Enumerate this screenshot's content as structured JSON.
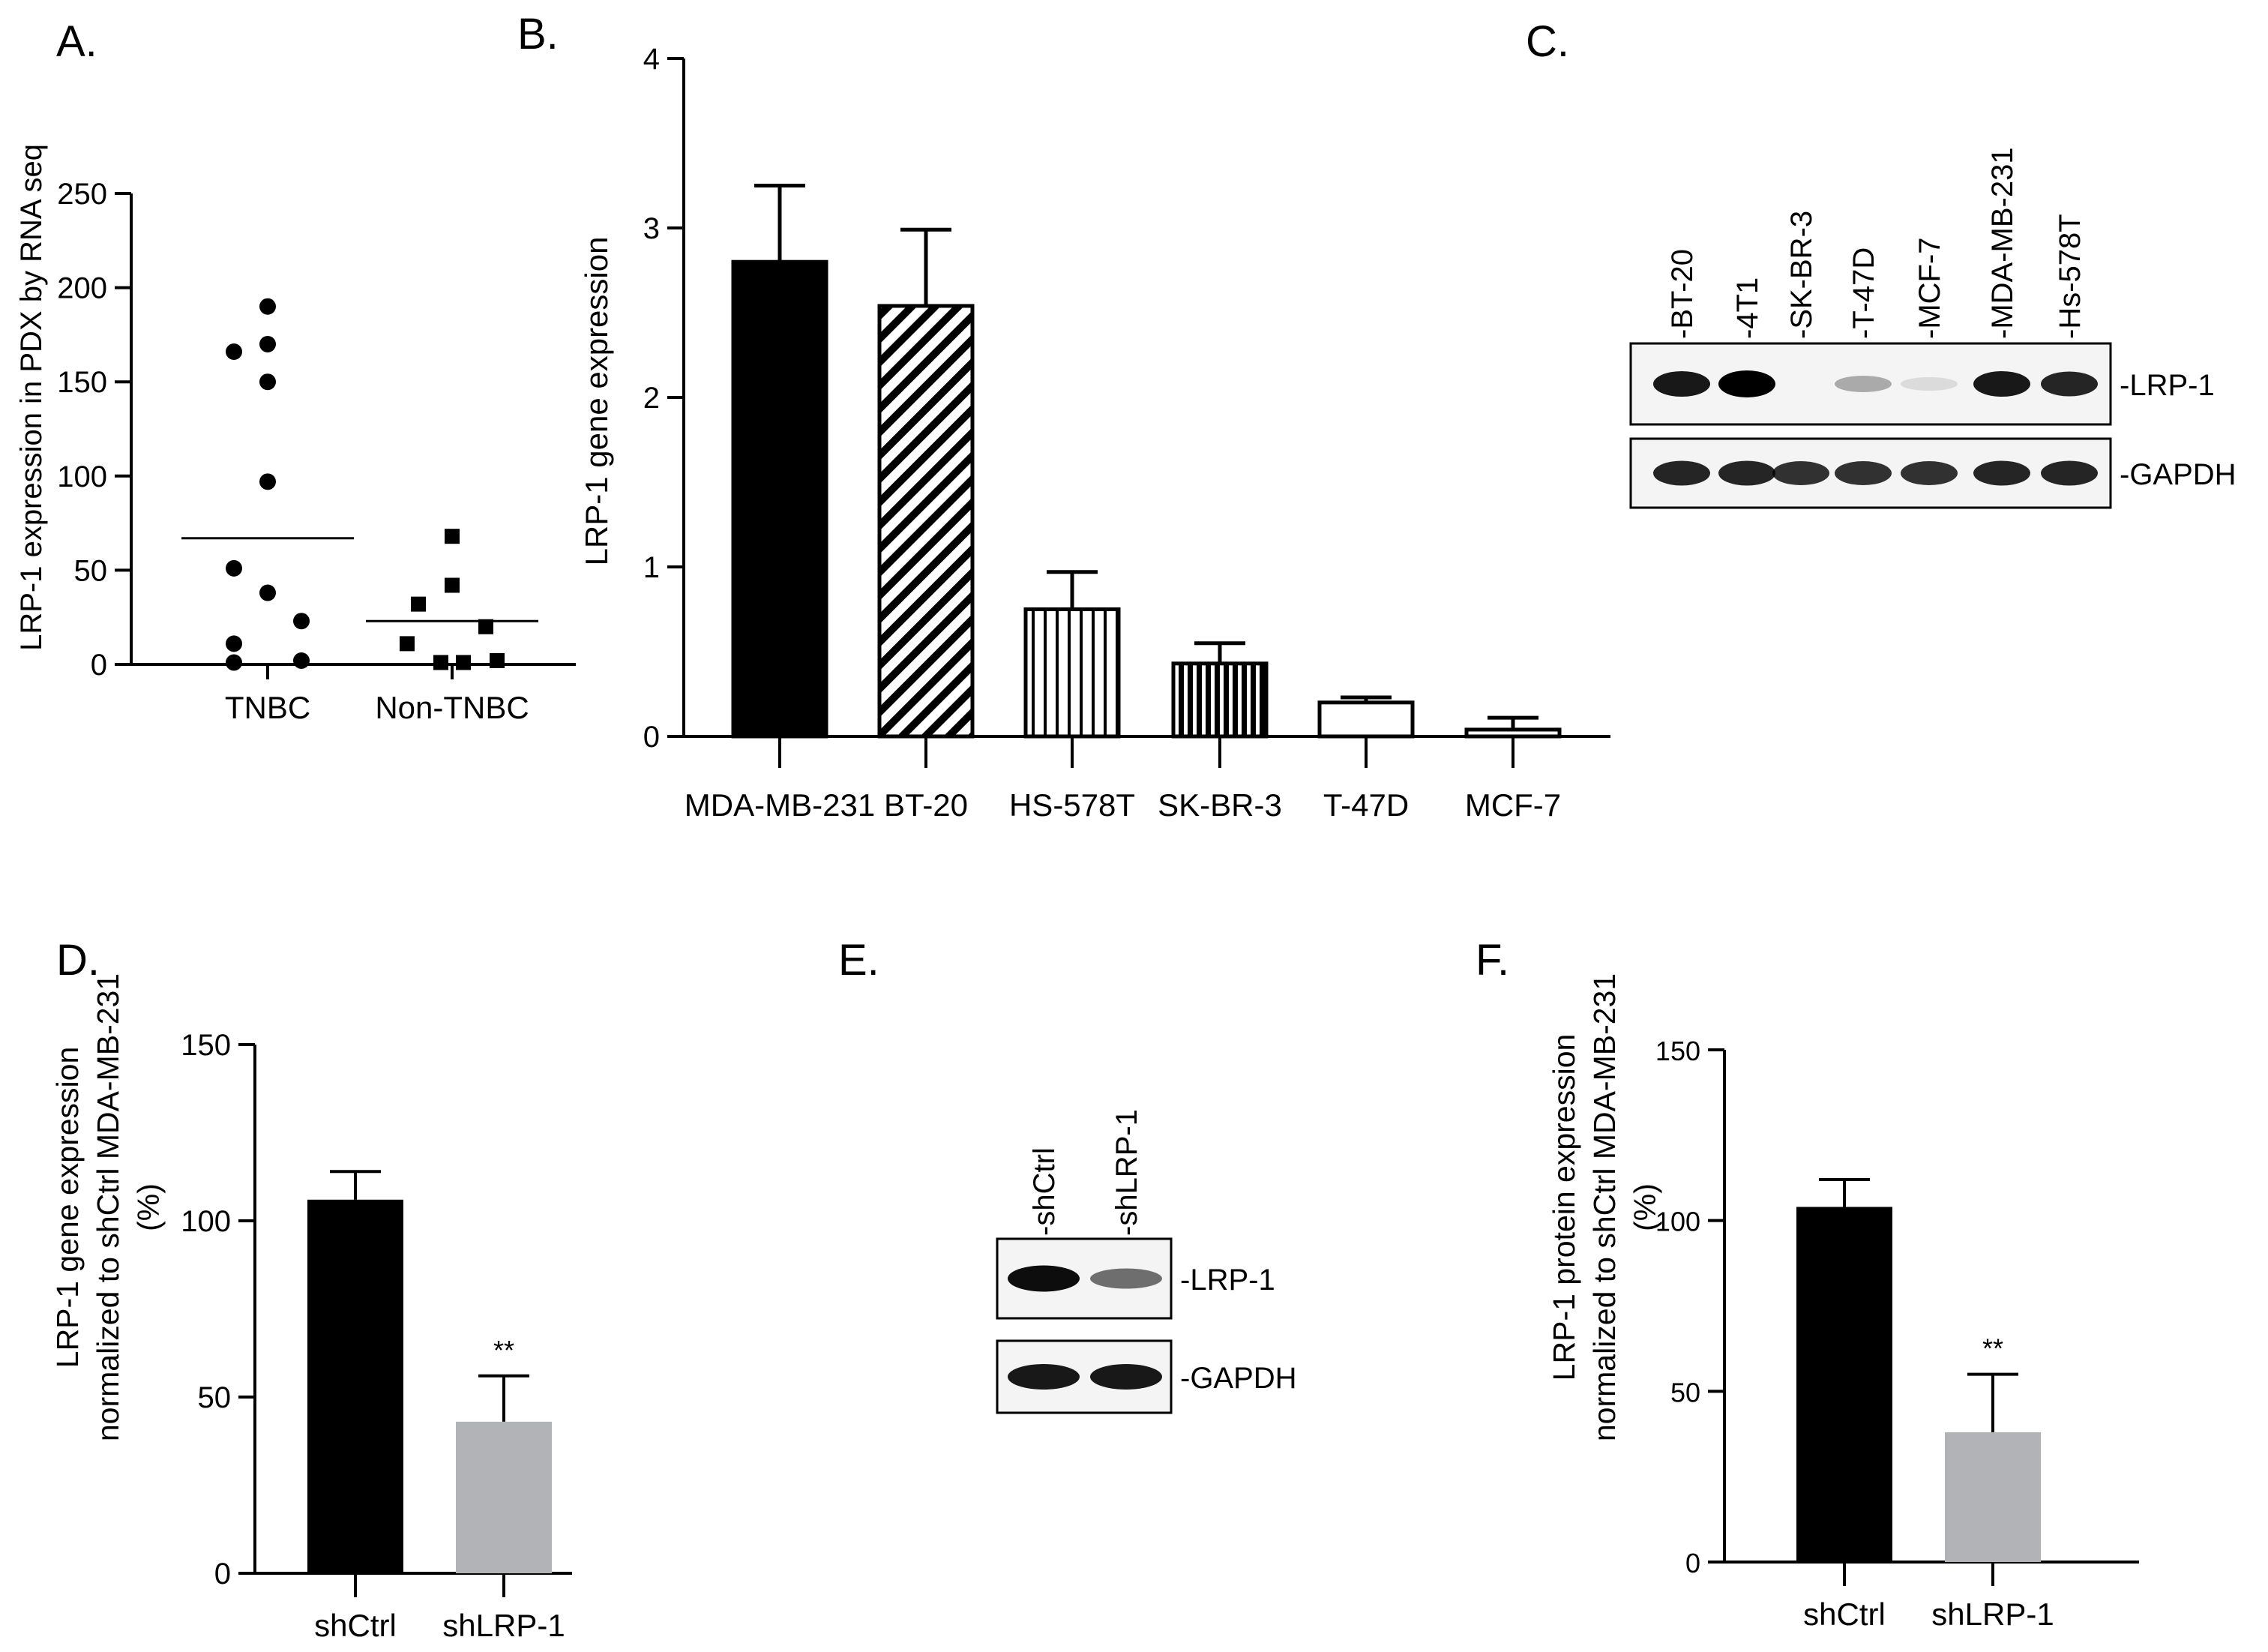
{
  "panel_labels": {
    "a": "A.",
    "b": "B.",
    "c": "C.",
    "d": "D.",
    "e": "E.",
    "f": "F."
  },
  "colors": {
    "black": "#000000",
    "gray": "#b1b3b6",
    "white": "#ffffff"
  },
  "chart_data": [
    {
      "panel": "A",
      "type": "scatter",
      "ylabel": "LRP-1 expression in PDX by RNA seq",
      "xlabel": "",
      "ylim": [
        0,
        250
      ],
      "yticks": [
        0,
        50,
        100,
        150,
        200,
        250
      ],
      "categories": [
        "TNBC",
        "Non-TNBC"
      ],
      "series": [
        {
          "name": "TNBC",
          "marker": "circle",
          "values": [
            190,
            170,
            166,
            150,
            97,
            51,
            38,
            23,
            11,
            2,
            1
          ],
          "mean": 67
        },
        {
          "name": "Non-TNBC",
          "marker": "square",
          "values": [
            68,
            42,
            32,
            20,
            11,
            2,
            1,
            1
          ],
          "mean": 23
        }
      ]
    },
    {
      "panel": "B",
      "type": "bar",
      "ylabel": "LRP-1 gene expression",
      "xlabel": "",
      "ylim": [
        0,
        4
      ],
      "yticks": [
        0,
        1,
        2,
        3,
        4
      ],
      "categories": [
        "MDA-MB-231",
        "BT-20",
        "HS-578T",
        "SK-BR-3",
        "T-47D",
        "MCF-7"
      ],
      "values": [
        2.8,
        2.54,
        0.75,
        0.43,
        0.2,
        0.04
      ],
      "errors": [
        0.45,
        0.45,
        0.22,
        0.12,
        0.03,
        0.07
      ],
      "fills": [
        "solid",
        "diagonal",
        "vertical",
        "vertical-dense",
        "empty",
        "empty"
      ]
    },
    {
      "panel": "D",
      "type": "bar",
      "ylabel": "LRP-1 gene expression normalized to shCtrl MDA-MB-231 (%)",
      "ylabel_lines": [
        "LRP-1 gene expression",
        "normalized to shCtrl MDA-MB-231",
        "(%)"
      ],
      "xlabel": "",
      "ylim": [
        0,
        150
      ],
      "yticks": [
        0,
        50,
        100,
        150
      ],
      "categories": [
        "shCtrl",
        "shLRP-1"
      ],
      "values": [
        106,
        43
      ],
      "errors": [
        8,
        13
      ],
      "significance": [
        "",
        "**"
      ]
    },
    {
      "panel": "F",
      "type": "bar",
      "ylabel": "LRP-1 protein expression normalized to shCtrl MDA-MB-231 (%)",
      "ylabel_lines": [
        "LRP-1 protein expression",
        "normalized to shCtrl MDA-MB-231",
        "(%)"
      ],
      "xlabel": "",
      "ylim": [
        0,
        150
      ],
      "yticks": [
        0,
        50,
        100,
        150
      ],
      "categories": [
        "shCtrl",
        "shLRP-1"
      ],
      "values": [
        104,
        38
      ],
      "errors": [
        8,
        17
      ],
      "significance": [
        "",
        "**"
      ]
    }
  ],
  "blot_c": {
    "lanes": [
      "-BT-20",
      "-4T1",
      "-SK-BR-3",
      "-T-47D",
      "-MCF-7",
      "-MDA-MB-231",
      "-Hs-578T"
    ],
    "rows": [
      {
        "label": "-LRP-1",
        "intensities": [
          0.9,
          1.0,
          0.0,
          0.3,
          0.1,
          0.9,
          0.85
        ]
      },
      {
        "label": "-GAPDH",
        "intensities": [
          0.85,
          0.85,
          0.8,
          0.8,
          0.8,
          0.85,
          0.85
        ]
      }
    ]
  },
  "blot_e": {
    "lanes": [
      "-shCtrl",
      "-shLRP-1"
    ],
    "rows": [
      {
        "label": "-LRP-1",
        "intensities": [
          0.95,
          0.55
        ]
      },
      {
        "label": "-GAPDH",
        "intensities": [
          0.9,
          0.9
        ]
      }
    ]
  }
}
